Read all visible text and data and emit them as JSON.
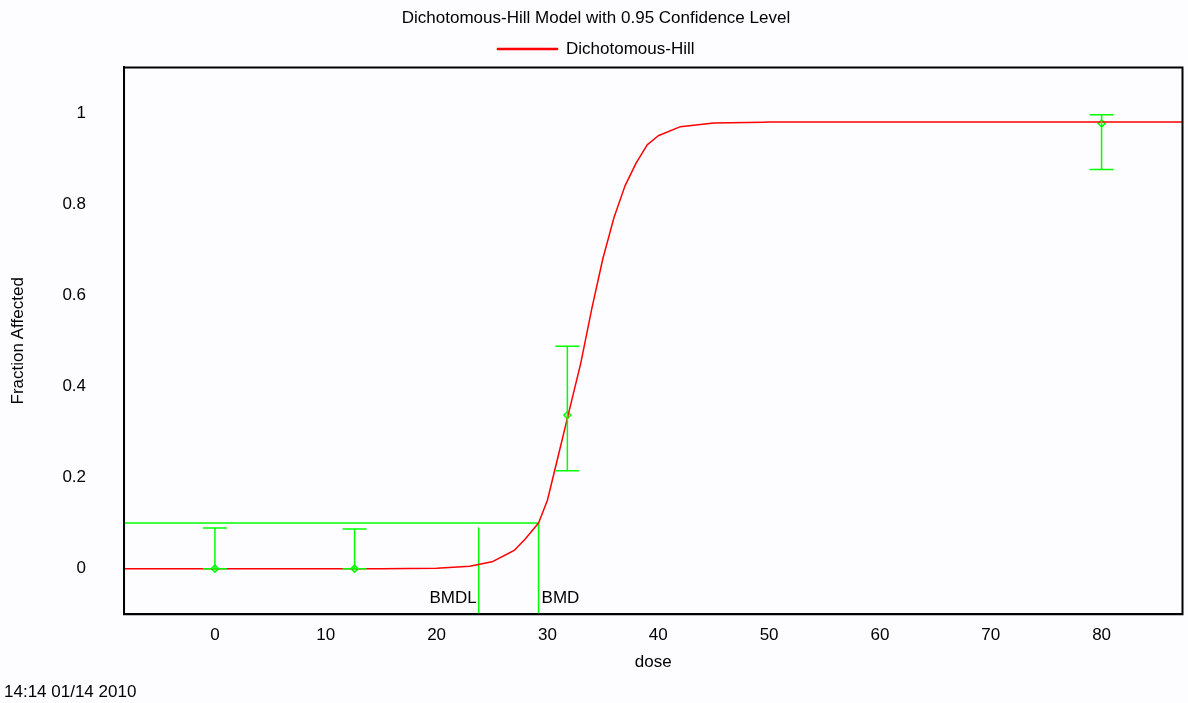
{
  "chart_data": {
    "type": "line",
    "title": "Dichotomous-Hill Model with 0.95 Confidence Level",
    "xlabel": "dose",
    "ylabel": "Fraction Affected",
    "xlim": [
      -8.2,
      87.3
    ],
    "xticks": [
      0,
      10,
      20,
      30,
      40,
      50,
      60,
      70,
      80
    ],
    "ylim": [
      -0.1,
      1.1
    ],
    "yticks": [
      0,
      0.2,
      0.4,
      0.6,
      0.8,
      1
    ],
    "grid": false,
    "legend": "top",
    "marker": "none",
    "line_style": "solid",
    "series": [
      {
        "name": "Dichotomous-Hill",
        "color": "#ff0000",
        "x": [
          -8.2,
          15,
          20,
          23,
          25,
          27,
          28,
          29.2,
          30,
          31,
          32,
          33,
          34,
          35,
          36,
          37,
          38,
          39,
          40,
          42,
          45,
          50,
          87.3
        ],
        "values": [
          0,
          0,
          0.001,
          0.005,
          0.015,
          0.04,
          0.065,
          0.1,
          0.15,
          0.25,
          0.35,
          0.45,
          0.57,
          0.68,
          0.77,
          0.84,
          0.89,
          0.93,
          0.95,
          0.97,
          0.978,
          0.98,
          0.98
        ]
      },
      {
        "type": "scatter",
        "marker": "diamond",
        "color": "#00ff00",
        "x": [
          0,
          12.6,
          31.8,
          80
        ],
        "values": [
          0,
          0,
          0.337,
          0.977
        ],
        "errors": [
          [
            0,
            0.089
          ],
          [
            0,
            0.087
          ],
          [
            0.215,
            0.488
          ],
          [
            0.876,
            0.996
          ]
        ]
      },
      {
        "type": "line",
        "color": "#00ff00",
        "x": [
          -8.2,
          29.2
        ],
        "values": [
          0.1,
          0.1
        ]
      },
      {
        "type": "line",
        "color": "#00ff00",
        "x": [
          29.2,
          29.2
        ],
        "values": [
          0.1,
          -0.1
        ]
      },
      {
        "type": "line",
        "color": "#00ff00",
        "x": [
          23.8,
          23.8
        ],
        "values": [
          0.089,
          -0.1
        ]
      }
    ],
    "annotations": [
      {
        "text": "BMDL",
        "x": 23.8,
        "y": -0.065
      },
      {
        "text": "BMD",
        "x": 29.2,
        "y": -0.065
      },
      "14:14 01/14 2010"
    ]
  }
}
